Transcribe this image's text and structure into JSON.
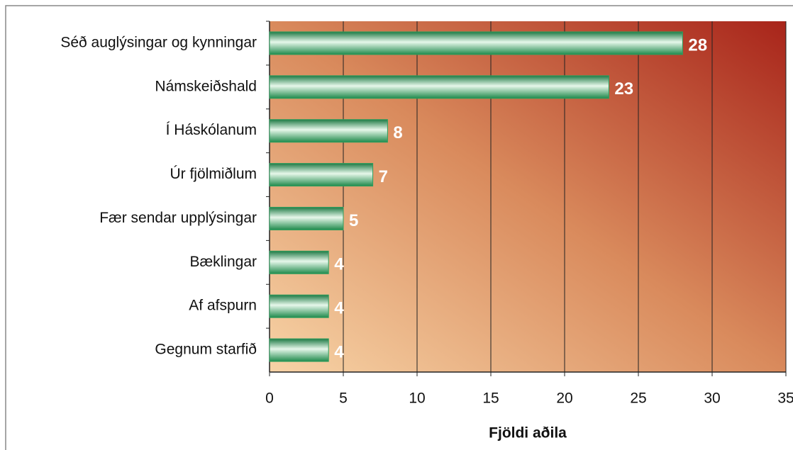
{
  "chart_data": {
    "type": "bar",
    "orientation": "horizontal",
    "x_label": "Fjöldi aðila",
    "categories": [
      "Séð auglýsingar og kynningar",
      "Námskeiðshald",
      "Í Háskólanum",
      "Úr fjölmiðlum",
      "Fær sendar upplýsingar",
      "Bæklingar",
      "Af afspurn",
      "Gegnum starfið"
    ],
    "values": [
      28,
      23,
      8,
      7,
      5,
      4,
      4,
      4
    ],
    "color": "#2e9e5e",
    "xlim": [
      0,
      35
    ],
    "xticks": [
      0,
      5,
      10,
      15,
      20,
      25,
      30,
      35
    ],
    "grid": true
  }
}
